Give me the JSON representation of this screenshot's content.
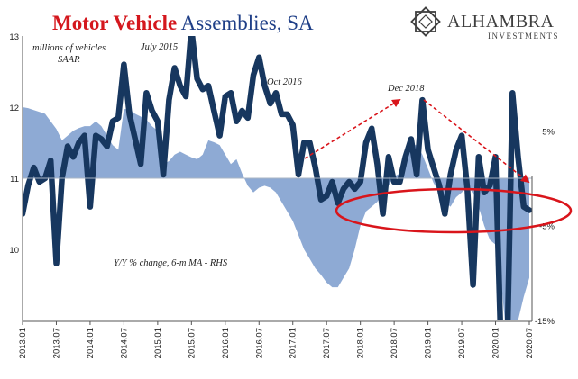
{
  "title": {
    "part1": "Motor Vehicle",
    "part2": " Assemblies, SA"
  },
  "logo": {
    "name": "ALHAMBRA",
    "sub": "INVESTMENTS"
  },
  "colors": {
    "title_red": "#d4171d",
    "title_blue": "#1f3f87",
    "line": "#17375f",
    "area": "#8eaad4",
    "arrow": "#d9151b",
    "ellipse": "#d9151b"
  },
  "chart_data": {
    "type": "line",
    "title": "Motor Vehicle Assemblies, SA",
    "left_axis": {
      "ylim": [
        9,
        13
      ],
      "ticks": [
        10,
        11,
        12,
        13
      ],
      "unit_note": "millions of vehicles SAAR"
    },
    "right_axis": {
      "ylim": [
        -15,
        15
      ],
      "ticks": [
        "5%",
        "-5%",
        "-15%"
      ]
    },
    "x_ticks": [
      "2013.01",
      "2013.07",
      "2014.01",
      "2014.07",
      "2015.01",
      "2015.07",
      "2016.01",
      "2016.07",
      "2017.01",
      "2017.07",
      "2018.01",
      "2018.07",
      "2019.01",
      "2019.07",
      "2020.01",
      "2020.07"
    ],
    "series": [
      {
        "name": "",
        "axis": "left",
        "type": "line",
        "values": [
          10.5,
          10.9,
          11.15,
          10.95,
          11.0,
          11.25,
          9.8,
          11.0,
          11.45,
          11.3,
          11.5,
          11.6,
          10.6,
          11.6,
          11.55,
          11.45,
          11.8,
          11.85,
          12.6,
          11.9,
          11.55,
          11.2,
          12.2,
          11.95,
          11.8,
          11.05,
          12.1,
          12.55,
          12.3,
          12.15,
          13.1,
          12.4,
          12.25,
          12.3,
          11.95,
          11.6,
          12.15,
          12.2,
          11.8,
          11.95,
          11.85,
          12.45,
          12.7,
          12.3,
          12.05,
          12.2,
          11.9,
          11.9,
          11.75,
          11.05,
          11.5,
          11.5,
          11.15,
          10.7,
          10.75,
          10.95,
          10.65,
          10.85,
          10.95,
          10.85,
          10.95,
          11.5,
          11.7,
          11.2,
          10.5,
          11.3,
          10.95,
          10.95,
          11.3,
          11.55,
          11.05,
          12.1,
          11.4,
          11.15,
          10.9,
          10.5,
          11.05,
          11.4,
          11.6,
          10.85,
          9.5,
          11.3,
          10.8,
          10.9,
          11.3,
          8.5,
          8.3,
          12.2,
          11.3,
          10.6,
          10.55
        ],
        "notes": [
          "July 2015",
          "Oct 2016",
          "Dec 2018"
        ]
      },
      {
        "name": "Y/Y % change, 6-m MA - RHS",
        "axis": "right",
        "type": "area",
        "values": [
          7.5,
          7.4,
          7.2,
          7.0,
          6.8,
          6.0,
          5.2,
          4.0,
          4.5,
          5.0,
          5.3,
          5.5,
          5.5,
          6.0,
          5.5,
          4.5,
          3.5,
          3.0,
          7.3,
          7.3,
          6.8,
          6.5,
          6.2,
          5.5,
          5.0,
          1.5,
          1.8,
          2.5,
          2.8,
          2.5,
          2.2,
          2.0,
          2.5,
          4.0,
          3.8,
          3.5,
          2.5,
          1.5,
          2.0,
          0.5,
          -0.8,
          -1.5,
          -1.0,
          -0.8,
          -1.0,
          -1.5,
          -2.5,
          -3.5,
          -4.5,
          -6.0,
          -7.5,
          -8.5,
          -9.5,
          -10.2,
          -11.0,
          -11.5,
          -11.5,
          -10.5,
          -9.5,
          -7.5,
          -5.0,
          -3.5,
          -3.0,
          -2.5,
          -1.5,
          -0.8,
          0.2,
          0.5,
          1.5,
          3.5,
          3.5,
          2.5,
          1.0,
          -0.5,
          -1.5,
          -2.5,
          -3.0,
          -2.0,
          -1.5,
          -1.0,
          -1.5,
          -3.0,
          -5.0,
          -6.5,
          -7.0,
          -11.0,
          -17.0,
          -16.0,
          -15.0,
          -12.5,
          -10.5
        ]
      }
    ],
    "annotations": [
      "millions of vehicles",
      "SAAR",
      "July 2015",
      "Oct 2016",
      "Dec 2018",
      "Y/Y % change, 6-m MA - RHS"
    ]
  }
}
